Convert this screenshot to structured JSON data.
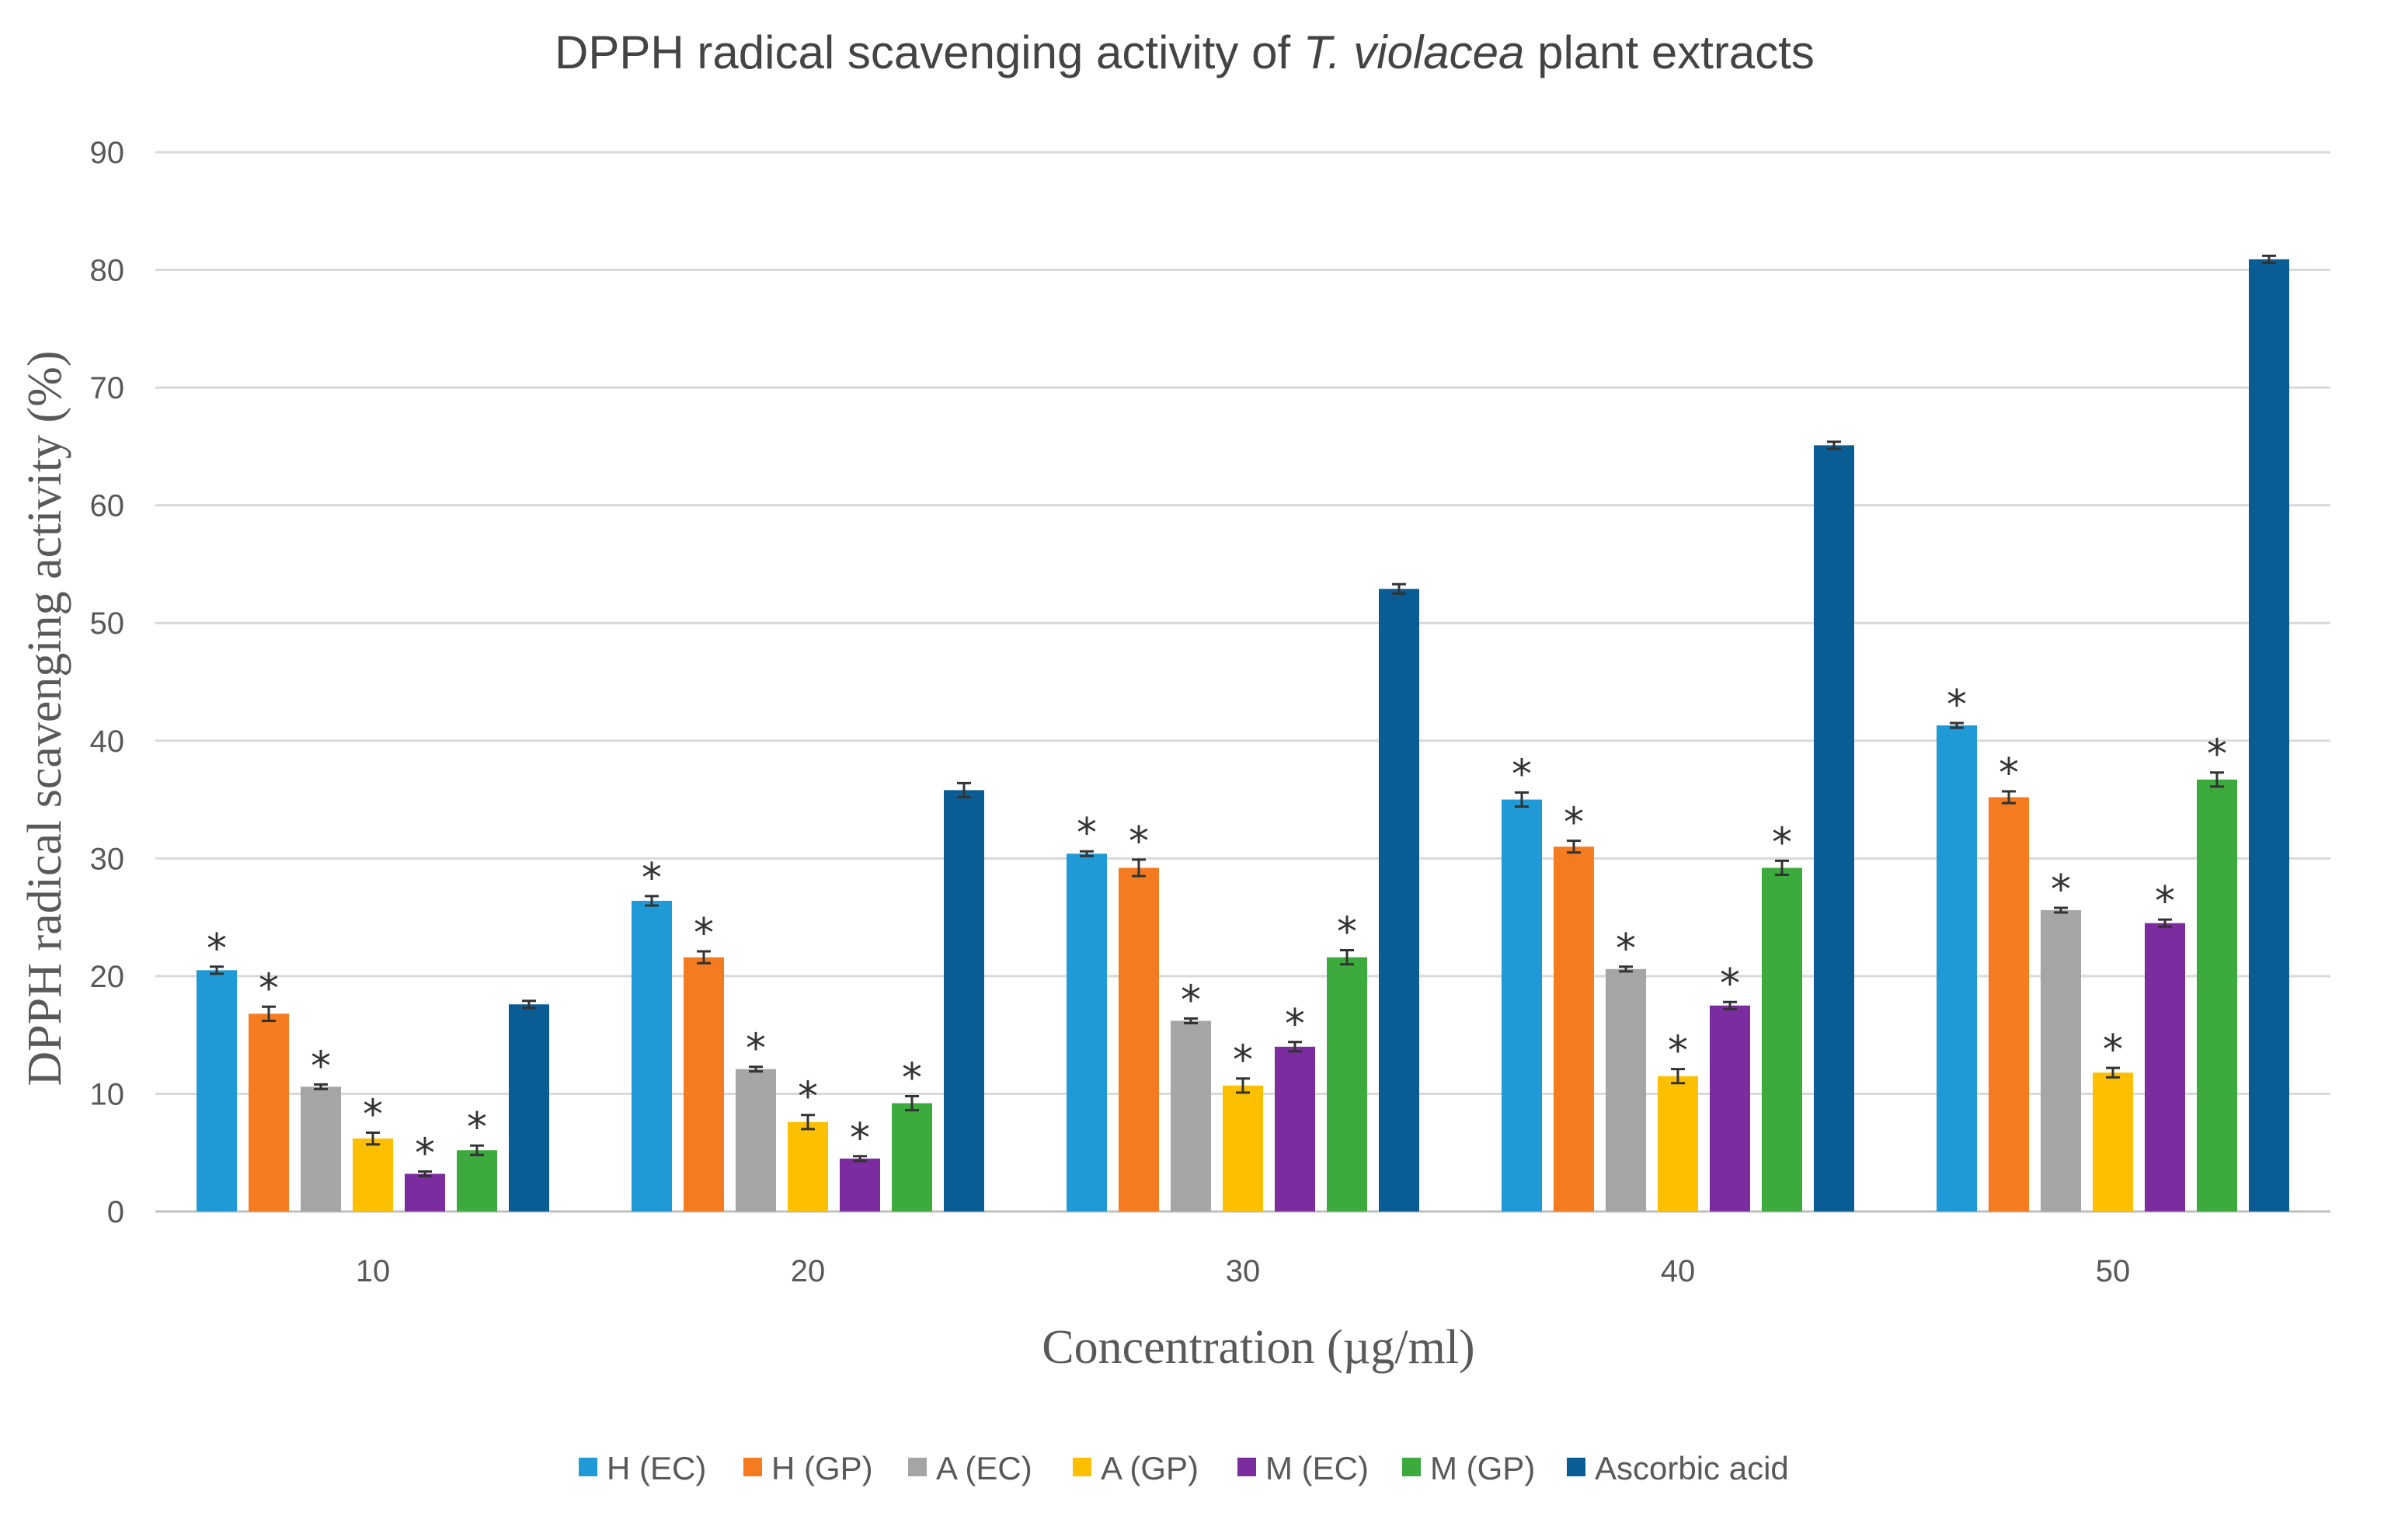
{
  "chart_data": {
    "type": "bar",
    "title_prefix": "DPPH radical scavenging activity of ",
    "title_italic": "T. violacea",
    "title_suffix": " plant extracts",
    "xlabel": "Concentration (µg/ml)",
    "ylabel": "DPPH radical scavenging activity (%)",
    "ylim": [
      0,
      90
    ],
    "yticks": [
      0,
      10,
      20,
      30,
      40,
      50,
      60,
      70,
      80,
      90
    ],
    "grid": true,
    "legend_position": "bottom",
    "categories": [
      "10",
      "20",
      "30",
      "40",
      "50"
    ],
    "significance_marker": "*",
    "series": [
      {
        "name": "H (EC)",
        "color": "#1f9ad6",
        "values": [
          20.5,
          26.4,
          30.4,
          35.0,
          41.3
        ],
        "errors": [
          0.3,
          0.4,
          0.2,
          0.6,
          0.2
        ],
        "significant": [
          true,
          true,
          true,
          true,
          true
        ]
      },
      {
        "name": "H (GP)",
        "color": "#f47b20",
        "values": [
          16.8,
          21.6,
          29.2,
          31.0,
          35.2
        ],
        "errors": [
          0.6,
          0.5,
          0.7,
          0.5,
          0.5
        ],
        "significant": [
          true,
          true,
          true,
          true,
          true
        ]
      },
      {
        "name": "A (EC)",
        "color": "#a5a5a5",
        "values": [
          10.6,
          12.1,
          16.2,
          20.6,
          25.6
        ],
        "errors": [
          0.2,
          0.2,
          0.2,
          0.2,
          0.2
        ],
        "significant": [
          true,
          true,
          true,
          true,
          true
        ]
      },
      {
        "name": "A (GP)",
        "color": "#fcc000",
        "values": [
          6.2,
          7.6,
          10.7,
          11.5,
          11.8
        ],
        "errors": [
          0.5,
          0.6,
          0.6,
          0.6,
          0.4
        ],
        "significant": [
          true,
          true,
          true,
          true,
          true
        ]
      },
      {
        "name": "M (EC)",
        "color": "#7b2c9e",
        "values": [
          3.2,
          4.5,
          14.0,
          17.5,
          24.5
        ],
        "errors": [
          0.2,
          0.2,
          0.4,
          0.3,
          0.3
        ],
        "significant": [
          true,
          true,
          true,
          true,
          true
        ]
      },
      {
        "name": "M (GP)",
        "color": "#3daa3d",
        "values": [
          5.2,
          9.2,
          21.6,
          29.2,
          36.7
        ],
        "errors": [
          0.4,
          0.6,
          0.6,
          0.6,
          0.6
        ],
        "significant": [
          true,
          true,
          true,
          true,
          true
        ]
      },
      {
        "name": "Ascorbic acid",
        "color": "#0a5c94",
        "values": [
          17.6,
          35.8,
          52.9,
          65.1,
          80.9
        ],
        "errors": [
          0.3,
          0.6,
          0.4,
          0.3,
          0.3
        ],
        "significant": [
          false,
          false,
          false,
          false,
          false
        ]
      }
    ]
  }
}
